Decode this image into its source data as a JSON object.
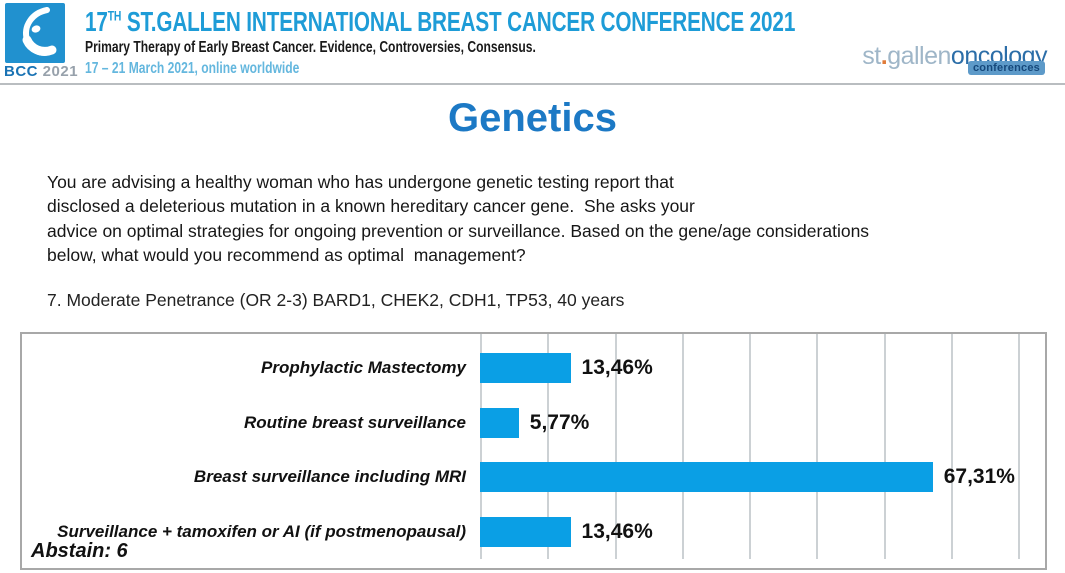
{
  "header": {
    "logo": {
      "bcc": "BCC",
      "year": "2021"
    },
    "title_num": "17",
    "title_sup": "TH",
    "title_rest": " ST.GALLEN INTERNATIONAL BREAST CANCER CONFERENCE 2021",
    "subtitle": "Primary Therapy of Early Breast Cancer. Evidence, Controversies, Consensus.",
    "date_line": "17 – 21 March 2021, online worldwide",
    "brand": {
      "st": "st",
      "dot": ".",
      "gallen": "gallen",
      "oncology": "oncology",
      "badge": "conferences"
    }
  },
  "page_title": "Genetics",
  "question": {
    "lines": [
      "You are advising a healthy woman who has undergone genetic testing report that",
      "disclosed a deleterious mutation in a known hereditary cancer gene.  She asks your",
      "advice on optimal strategies for ongoing prevention or surveillance. Based on the gene/age considerations",
      "below, what would you recommend as optimal  management?"
    ]
  },
  "item_label": "7. Moderate Penetrance (OR 2-3) BARD1, CHEK2, CDH1, TP53, 40 years",
  "abstain_label": "Abstain: 6",
  "chart_data": {
    "type": "bar",
    "orientation": "horizontal",
    "title": "7. Moderate Penetrance (OR 2-3) BARD1, CHEK2, CDH1, TP53, 40 years",
    "categories": [
      "Prophylactic Mastectomy",
      "Routine breast surveillance",
      "Breast surveillance including MRI",
      "Surveillance + tamoxifen or AI (if postmenopausal)"
    ],
    "values": [
      13.46,
      5.77,
      67.31,
      13.46
    ],
    "value_labels": [
      "13,46%",
      "5,77%",
      "67,31%",
      "13,46%"
    ],
    "abstain": 6,
    "xlim": [
      0,
      84
    ],
    "gridline_interval": 10,
    "grid": true,
    "legend": false,
    "bar_color": "#0a9fe5",
    "gridline_color": "#ccd1d4"
  }
}
